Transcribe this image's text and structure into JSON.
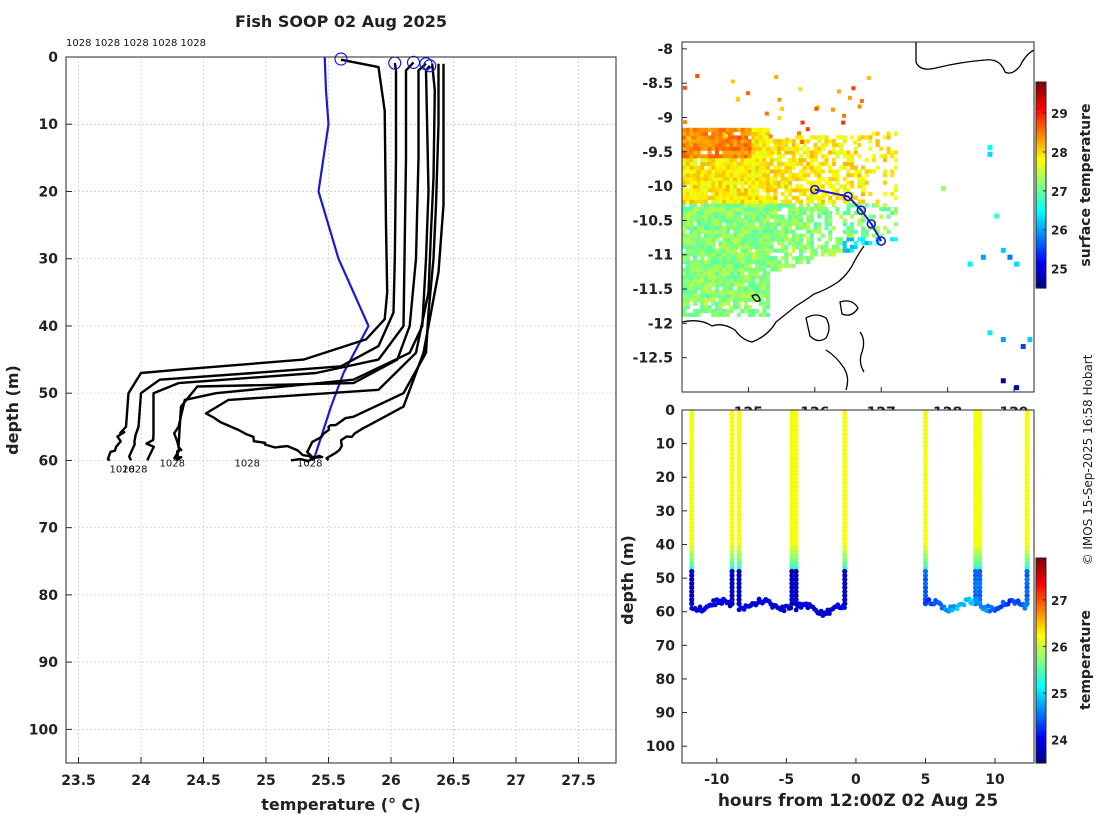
{
  "chart_data": [
    {
      "type": "line",
      "title": "Fish SOOP 02 Aug 2025",
      "xlabel": "temperature (° C)",
      "ylabel": "depth (m)",
      "xlim": [
        23.4,
        27.8
      ],
      "ylim": [
        105,
        0
      ],
      "xticks": [
        "23.5",
        "24",
        "24.5",
        "25",
        "25.5",
        "26",
        "26.5",
        "27",
        "27.5"
      ],
      "yticks": [
        "0",
        "10",
        "20",
        "30",
        "40",
        "50",
        "60",
        "70",
        "80",
        "90",
        "100"
      ],
      "top_labels": "1028 1028 1028 1028 1028",
      "bottom_label": "1028",
      "bottom_label_temps": [
        23.85,
        23.95,
        24.25,
        24.85,
        25.35
      ],
      "drop_markers": [
        {
          "t": 25.6,
          "d": 0.3
        },
        {
          "t": 26.03,
          "d": 0.9
        },
        {
          "t": 26.18,
          "d": 0.8
        },
        {
          "t": 26.28,
          "d": 1.0
        },
        {
          "t": 26.31,
          "d": 1.3
        }
      ],
      "series": [
        {
          "name": "blue-reference",
          "color": "#1a1ad6",
          "points": [
            [
              25.47,
              0
            ],
            [
              25.48,
              5
            ],
            [
              25.5,
              10
            ],
            [
              25.42,
              20
            ],
            [
              25.58,
              30
            ],
            [
              25.82,
              40
            ],
            [
              25.62,
              47
            ],
            [
              25.52,
              52
            ],
            [
              25.38,
              60
            ]
          ]
        },
        {
          "name": "cast-1",
          "color": "#000000",
          "points": [
            [
              25.6,
              0.4
            ],
            [
              25.9,
              1.5
            ],
            [
              25.95,
              8
            ],
            [
              25.96,
              25
            ],
            [
              25.97,
              35
            ],
            [
              25.95,
              39
            ],
            [
              25.8,
              42
            ],
            [
              25.3,
              45
            ],
            [
              24.3,
              46.5
            ],
            [
              24.0,
              47
            ],
            [
              23.9,
              50
            ],
            [
              23.88,
              55
            ],
            [
              23.8,
              58
            ],
            [
              23.75,
              60
            ]
          ]
        },
        {
          "name": "cast-2",
          "color": "#000000",
          "points": [
            [
              26.03,
              0.9
            ],
            [
              26.04,
              2
            ],
            [
              26.04,
              15
            ],
            [
              26.03,
              30
            ],
            [
              26.02,
              38
            ],
            [
              25.9,
              43
            ],
            [
              25.6,
              46
            ],
            [
              24.9,
              47
            ],
            [
              24.15,
              48
            ],
            [
              24.0,
              50
            ],
            [
              23.98,
              55
            ],
            [
              23.92,
              60
            ]
          ]
        },
        {
          "name": "cast-3",
          "color": "#000000",
          "points": [
            [
              26.18,
              0.8
            ],
            [
              26.12,
              2
            ],
            [
              26.12,
              15
            ],
            [
              26.11,
              28
            ],
            [
              26.1,
              40
            ],
            [
              25.9,
              45
            ],
            [
              25.4,
              47
            ],
            [
              24.3,
              48.5
            ],
            [
              24.1,
              50
            ],
            [
              24.1,
              56
            ],
            [
              24.05,
              60
            ]
          ]
        },
        {
          "name": "cast-4",
          "color": "#000000",
          "points": [
            [
              26.28,
              1.0
            ],
            [
              26.22,
              2
            ],
            [
              26.22,
              15
            ],
            [
              26.2,
              30
            ],
            [
              26.15,
              40
            ],
            [
              26.05,
              45
            ],
            [
              25.7,
              48.5
            ],
            [
              24.45,
              49
            ],
            [
              24.32,
              52
            ],
            [
              24.3,
              58
            ],
            [
              24.28,
              60
            ]
          ]
        },
        {
          "name": "cast-5",
          "color": "#000000",
          "points": [
            [
              26.31,
              1.3
            ],
            [
              26.28,
              2
            ],
            [
              26.3,
              20
            ],
            [
              26.28,
              30
            ],
            [
              26.25,
              40
            ],
            [
              26.15,
              44
            ],
            [
              25.7,
              48
            ],
            [
              24.6,
              50
            ],
            [
              24.35,
              51
            ],
            [
              24.3,
              55
            ],
            [
              24.3,
              60
            ]
          ]
        },
        {
          "name": "cast-6",
          "color": "#000000",
          "points": [
            [
              26.33,
              1
            ],
            [
              26.35,
              5
            ],
            [
              26.34,
              18
            ],
            [
              26.32,
              26
            ],
            [
              26.3,
              35
            ],
            [
              26.2,
              44
            ],
            [
              25.9,
              49.5
            ],
            [
              24.7,
              51
            ],
            [
              24.52,
              53
            ],
            [
              24.9,
              56.5
            ],
            [
              25.1,
              58
            ],
            [
              25.45,
              59.5
            ],
            [
              25.2,
              60
            ]
          ]
        },
        {
          "name": "cast-7",
          "color": "#000000",
          "points": [
            [
              26.38,
              1
            ],
            [
              26.38,
              10
            ],
            [
              26.36,
              22
            ],
            [
              26.34,
              30
            ],
            [
              26.3,
              38
            ],
            [
              26.28,
              44
            ],
            [
              26.1,
              50
            ],
            [
              25.7,
              53.5
            ],
            [
              25.5,
              55
            ],
            [
              25.35,
              58
            ],
            [
              25.38,
              60
            ]
          ]
        },
        {
          "name": "cast-8",
          "color": "#000000",
          "points": [
            [
              26.42,
              1
            ],
            [
              26.42,
              10
            ],
            [
              26.42,
              22
            ],
            [
              26.38,
              32
            ],
            [
              26.32,
              38
            ],
            [
              26.26,
              44
            ],
            [
              26.1,
              52
            ],
            [
              25.8,
              55
            ],
            [
              25.6,
              57
            ],
            [
              25.5,
              60
            ]
          ]
        }
      ]
    },
    {
      "type": "heatmap",
      "xlim": [
        124.0,
        129.3
      ],
      "ylim": [
        -13.0,
        -7.9
      ],
      "yticks": [
        "-8",
        "-8.5",
        "-9",
        "-9.5",
        "-10",
        "-10.5",
        "-11",
        "-11.5",
        "-12",
        "-12.5"
      ],
      "xticks": [
        "125",
        "126",
        "127",
        "128",
        "129"
      ],
      "colorbar_label": "surface temperature",
      "colorbar_ticks": [
        "25",
        "26",
        "27",
        "28",
        "29"
      ],
      "colorbar_range": [
        24.5,
        29.8
      ],
      "track": [
        [
          126.0,
          -10.05
        ],
        [
          126.5,
          -10.15
        ],
        [
          126.7,
          -10.35
        ],
        [
          126.85,
          -10.55
        ],
        [
          127.0,
          -10.8
        ]
      ]
    },
    {
      "type": "scatter",
      "xlabel": "hours from 12:00Z 02 Aug 25",
      "ylabel": "depth (m)",
      "xlim": [
        -12.5,
        12.8
      ],
      "ylim": [
        105,
        0
      ],
      "xticks": [
        "-10",
        "-5",
        "0",
        "5",
        "10"
      ],
      "yticks": [
        "0",
        "10",
        "20",
        "30",
        "40",
        "50",
        "60",
        "70",
        "80",
        "90",
        "100"
      ],
      "colorbar_label": "temperature",
      "colorbar_ticks": [
        "24",
        "25",
        "26",
        "27"
      ],
      "colorbar_range": [
        23.5,
        27.9
      ],
      "cast_hours": [
        -11.8,
        -8.9,
        -8.4,
        -4.6,
        -4.3,
        -0.8,
        5.0,
        8.6,
        8.9,
        12.3
      ]
    }
  ],
  "credit": "© IMOS 15-Sep-2025 16:58 Hobart"
}
